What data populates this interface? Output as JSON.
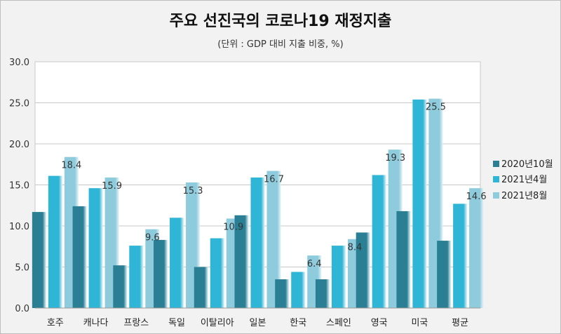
{
  "chart_data": {
    "type": "bar",
    "title": "주요 선진국의 코로나19 재정지출",
    "subtitle": "(단위 : GDP 대비 지출 비중, %)",
    "categories": [
      "호주",
      "캐나다",
      "프랑스",
      "독일",
      "이탈리아",
      "일본",
      "한국",
      "스페인",
      "영국",
      "미국",
      "평균"
    ],
    "series": [
      {
        "name": "2020년10월",
        "values": [
          11.7,
          12.4,
          5.2,
          8.3,
          5.0,
          11.3,
          3.5,
          3.5,
          9.2,
          11.8,
          8.2
        ],
        "color": "#2a7f94"
      },
      {
        "name": "2021년4월",
        "values": [
          16.1,
          14.6,
          7.6,
          11.0,
          8.5,
          15.9,
          4.4,
          7.6,
          16.2,
          25.4,
          12.7
        ],
        "color": "#2fb5d6"
      },
      {
        "name": "2021년8월",
        "values": [
          18.4,
          15.9,
          9.6,
          15.3,
          10.9,
          16.7,
          6.4,
          8.4,
          19.3,
          25.5,
          14.6
        ],
        "color": "#8ecbdc"
      }
    ],
    "data_labels": [
      "18.4",
      "15.9",
      "9.6",
      "15.3",
      "10.9",
      "16.7",
      "6.4",
      "8.4",
      "19.3",
      "25.5",
      "14.6"
    ],
    "yticks": [
      "0.0",
      "5.0",
      "10.0",
      "15.0",
      "20.0",
      "25.0",
      "30.0"
    ],
    "ylim": [
      0,
      30
    ],
    "grid": true,
    "legend": "right"
  }
}
